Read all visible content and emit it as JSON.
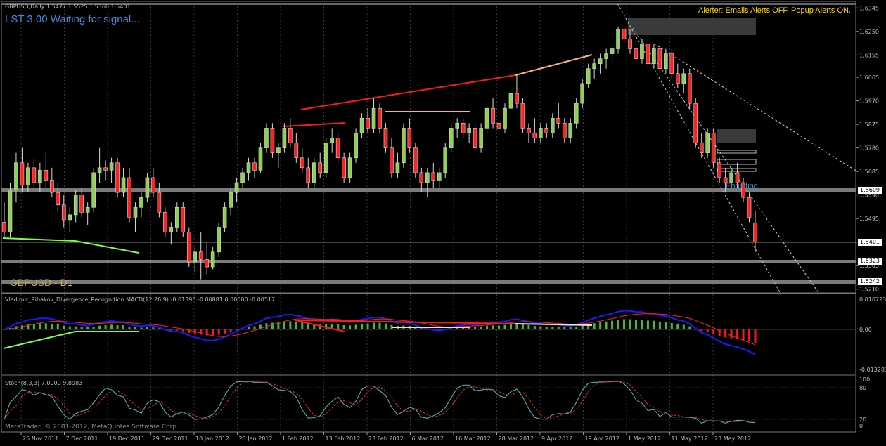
{
  "symbol_info": "GBPUSD,Daily  1.5477 1.5525 1.5360 1.5401",
  "title": "LST 3.00 Waiting for signal...",
  "alerter": "Alerter:  Emails Alerts OFF.  Popup Alerts ON.",
  "watermark": "GBPUSD - D1",
  "pattern_label": "Engulfing",
  "macd_header": "Vladimir_Ribakov_Divergence_Recognition  MACD(12,26,9) -0.01398 -0.00881 0.00000 -0.00517",
  "stoch_header": "Stoch(8,3,3) 7.0000 9.8983",
  "copyright": "MetaTrader, © 2001-2012, MetaQuotes Software Corp.",
  "colors": {
    "bull": "#8fd14f",
    "bear": "#ff2020",
    "background": "#000000",
    "macd_line": "#1a1aff",
    "signal_line": "#ff2020",
    "stoch_main": "#3ec6c6",
    "stoch_signal": "#ff2020"
  },
  "price_ticks": [
    "1.6345",
    "1.6250",
    "1.6155",
    "1.6065",
    "1.5970",
    "1.5875",
    "1.5780",
    "1.5685",
    "1.5590",
    "1.5495",
    "1.5400",
    "1.5305",
    "1.5210"
  ],
  "price_tags": [
    {
      "value": "1.5609"
    },
    {
      "value": "1.5401"
    },
    {
      "value": "1.5323"
    },
    {
      "value": "1.5242"
    }
  ],
  "macd_ticks": [
    "0.010723",
    "0.00",
    "-0.013283"
  ],
  "stoch_ticks": [
    "100",
    "80",
    "20",
    "0"
  ],
  "date_labels": [
    "25 Nov 2011",
    "7 Dec 2011",
    "19 Dec 2011",
    "29 Dec 2011",
    "10 Jan 2012",
    "20 Jan 2012",
    "1 Feb 2012",
    "13 Feb 2012",
    "23 Feb 2012",
    "6 Mar 2012",
    "16 Mar 2012",
    "28 Mar 2012",
    "9 Apr 2012",
    "19 Apr 2012",
    "1 May 2012",
    "11 May 2012",
    "23 May 2012"
  ],
  "chart_data": {
    "type": "candlestick",
    "title": "GBPUSD,Daily",
    "ylim": [
      1.5195,
      1.636
    ],
    "candles": [
      [
        1.548,
        1.556,
        1.542,
        1.544
      ],
      [
        1.544,
        1.564,
        1.542,
        1.561
      ],
      [
        1.561,
        1.576,
        1.556,
        1.572
      ],
      [
        1.572,
        1.578,
        1.56,
        1.563
      ],
      [
        1.563,
        1.572,
        1.56,
        1.57
      ],
      [
        1.57,
        1.574,
        1.562,
        1.564
      ],
      [
        1.564,
        1.572,
        1.56,
        1.569
      ],
      [
        1.569,
        1.576,
        1.562,
        1.565
      ],
      [
        1.565,
        1.57,
        1.558,
        1.56
      ],
      [
        1.56,
        1.564,
        1.552,
        1.555
      ],
      [
        1.555,
        1.559,
        1.546,
        1.549
      ],
      [
        1.549,
        1.554,
        1.544,
        1.551
      ],
      [
        1.551,
        1.561,
        1.548,
        1.559
      ],
      [
        1.559,
        1.562,
        1.55,
        1.552
      ],
      [
        1.552,
        1.556,
        1.547,
        1.554
      ],
      [
        1.554,
        1.57,
        1.552,
        1.568
      ],
      [
        1.568,
        1.578,
        1.564,
        1.57
      ],
      [
        1.57,
        1.573,
        1.565,
        1.569
      ],
      [
        1.569,
        1.574,
        1.564,
        1.572
      ],
      [
        1.572,
        1.574,
        1.558,
        1.56
      ],
      [
        1.56,
        1.57,
        1.558,
        1.566
      ],
      [
        1.566,
        1.57,
        1.548,
        1.55
      ],
      [
        1.55,
        1.556,
        1.544,
        1.554
      ],
      [
        1.554,
        1.56,
        1.55,
        1.558
      ],
      [
        1.558,
        1.568,
        1.556,
        1.566
      ],
      [
        1.566,
        1.57,
        1.558,
        1.56
      ],
      [
        1.56,
        1.564,
        1.55,
        1.552
      ],
      [
        1.552,
        1.554,
        1.542,
        1.544
      ],
      [
        1.544,
        1.548,
        1.539,
        1.546
      ],
      [
        1.546,
        1.556,
        1.544,
        1.554
      ],
      [
        1.554,
        1.556,
        1.542,
        1.544
      ],
      [
        1.544,
        1.546,
        1.53,
        1.532
      ],
      [
        1.532,
        1.538,
        1.528,
        1.536
      ],
      [
        1.536,
        1.544,
        1.525,
        1.533
      ],
      [
        1.533,
        1.54,
        1.527,
        1.53
      ],
      [
        1.53,
        1.538,
        1.529,
        1.536
      ],
      [
        1.536,
        1.548,
        1.534,
        1.546
      ],
      [
        1.546,
        1.556,
        1.544,
        1.554
      ],
      [
        1.554,
        1.562,
        1.551,
        1.56
      ],
      [
        1.56,
        1.566,
        1.556,
        1.564
      ],
      [
        1.564,
        1.57,
        1.562,
        1.568
      ],
      [
        1.568,
        1.574,
        1.565,
        1.572
      ],
      [
        1.572,
        1.574,
        1.566,
        1.569
      ],
      [
        1.569,
        1.58,
        1.568,
        1.578
      ],
      [
        1.578,
        1.588,
        1.576,
        1.586
      ],
      [
        1.586,
        1.588,
        1.574,
        1.576
      ],
      [
        1.576,
        1.58,
        1.57,
        1.578
      ],
      [
        1.578,
        1.588,
        1.576,
        1.586
      ],
      [
        1.586,
        1.59,
        1.578,
        1.58
      ],
      [
        1.58,
        1.584,
        1.572,
        1.574
      ],
      [
        1.574,
        1.578,
        1.568,
        1.57
      ],
      [
        1.57,
        1.574,
        1.562,
        1.564
      ],
      [
        1.564,
        1.574,
        1.562,
        1.572
      ],
      [
        1.572,
        1.576,
        1.566,
        1.568
      ],
      [
        1.568,
        1.582,
        1.566,
        1.58
      ],
      [
        1.58,
        1.586,
        1.576,
        1.582
      ],
      [
        1.582,
        1.584,
        1.572,
        1.574
      ],
      [
        1.574,
        1.576,
        1.564,
        1.566
      ],
      [
        1.566,
        1.576,
        1.564,
        1.574
      ],
      [
        1.574,
        1.586,
        1.572,
        1.584
      ],
      [
        1.584,
        1.592,
        1.582,
        1.59
      ],
      [
        1.59,
        1.594,
        1.584,
        1.586
      ],
      [
        1.586,
        1.598,
        1.584,
        1.594
      ],
      [
        1.594,
        1.596,
        1.584,
        1.586
      ],
      [
        1.586,
        1.588,
        1.576,
        1.578
      ],
      [
        1.578,
        1.582,
        1.566,
        1.568
      ],
      [
        1.568,
        1.576,
        1.566,
        1.572
      ],
      [
        1.572,
        1.588,
        1.57,
        1.586
      ],
      [
        1.586,
        1.59,
        1.576,
        1.578
      ],
      [
        1.578,
        1.58,
        1.566,
        1.568
      ],
      [
        1.568,
        1.57,
        1.56,
        1.564
      ],
      [
        1.564,
        1.57,
        1.558,
        1.568
      ],
      [
        1.568,
        1.572,
        1.562,
        1.565
      ],
      [
        1.565,
        1.57,
        1.562,
        1.568
      ],
      [
        1.568,
        1.58,
        1.566,
        1.578
      ],
      [
        1.578,
        1.588,
        1.576,
        1.586
      ],
      [
        1.586,
        1.59,
        1.582,
        1.588
      ],
      [
        1.588,
        1.59,
        1.582,
        1.584
      ],
      [
        1.584,
        1.588,
        1.58,
        1.586
      ],
      [
        1.586,
        1.588,
        1.576,
        1.578
      ],
      [
        1.578,
        1.588,
        1.576,
        1.586
      ],
      [
        1.586,
        1.596,
        1.584,
        1.594
      ],
      [
        1.594,
        1.598,
        1.586,
        1.588
      ],
      [
        1.588,
        1.592,
        1.582,
        1.586
      ],
      [
        1.586,
        1.596,
        1.584,
        1.594
      ],
      [
        1.594,
        1.602,
        1.59,
        1.6
      ],
      [
        1.6,
        1.608,
        1.594,
        1.596
      ],
      [
        1.596,
        1.598,
        1.584,
        1.586
      ],
      [
        1.586,
        1.588,
        1.58,
        1.584
      ],
      [
        1.584,
        1.59,
        1.58,
        1.582
      ],
      [
        1.582,
        1.588,
        1.58,
        1.586
      ],
      [
        1.586,
        1.588,
        1.582,
        1.584
      ],
      [
        1.584,
        1.592,
        1.582,
        1.59
      ],
      [
        1.59,
        1.596,
        1.586,
        1.588
      ],
      [
        1.588,
        1.59,
        1.58,
        1.582
      ],
      [
        1.582,
        1.59,
        1.58,
        1.588
      ],
      [
        1.588,
        1.598,
        1.586,
        1.596
      ],
      [
        1.596,
        1.606,
        1.594,
        1.604
      ],
      [
        1.604,
        1.612,
        1.602,
        1.61
      ],
      [
        1.61,
        1.614,
        1.606,
        1.612
      ],
      [
        1.612,
        1.616,
        1.608,
        1.614
      ],
      [
        1.614,
        1.618,
        1.61,
        1.616
      ],
      [
        1.616,
        1.62,
        1.612,
        1.618
      ],
      [
        1.618,
        1.627,
        1.616,
        1.626
      ],
      [
        1.626,
        1.63,
        1.62,
        1.622
      ],
      [
        1.622,
        1.626,
        1.616,
        1.618
      ],
      [
        1.618,
        1.622,
        1.612,
        1.614
      ],
      [
        1.614,
        1.622,
        1.612,
        1.62
      ],
      [
        1.62,
        1.622,
        1.61,
        1.612
      ],
      [
        1.612,
        1.62,
        1.61,
        1.618
      ],
      [
        1.618,
        1.62,
        1.608,
        1.61
      ],
      [
        1.61,
        1.618,
        1.608,
        1.616
      ],
      [
        1.616,
        1.618,
        1.606,
        1.608
      ],
      [
        1.608,
        1.612,
        1.602,
        1.604
      ],
      [
        1.604,
        1.61,
        1.6,
        1.608
      ],
      [
        1.608,
        1.61,
        1.594,
        1.596
      ],
      [
        1.596,
        1.598,
        1.578,
        1.58
      ],
      [
        1.58,
        1.584,
        1.574,
        1.576
      ],
      [
        1.576,
        1.586,
        1.574,
        1.584
      ],
      [
        1.584,
        1.586,
        1.57,
        1.572
      ],
      [
        1.572,
        1.574,
        1.564,
        1.566
      ],
      [
        1.566,
        1.57,
        1.56,
        1.564
      ],
      [
        1.564,
        1.57,
        1.562,
        1.568
      ],
      [
        1.568,
        1.572,
        1.562,
        1.564
      ],
      [
        1.564,
        1.566,
        1.556,
        1.558
      ],
      [
        1.558,
        1.56,
        1.548,
        1.55
      ],
      [
        1.5477,
        1.5525,
        1.536,
        1.5401
      ]
    ]
  }
}
